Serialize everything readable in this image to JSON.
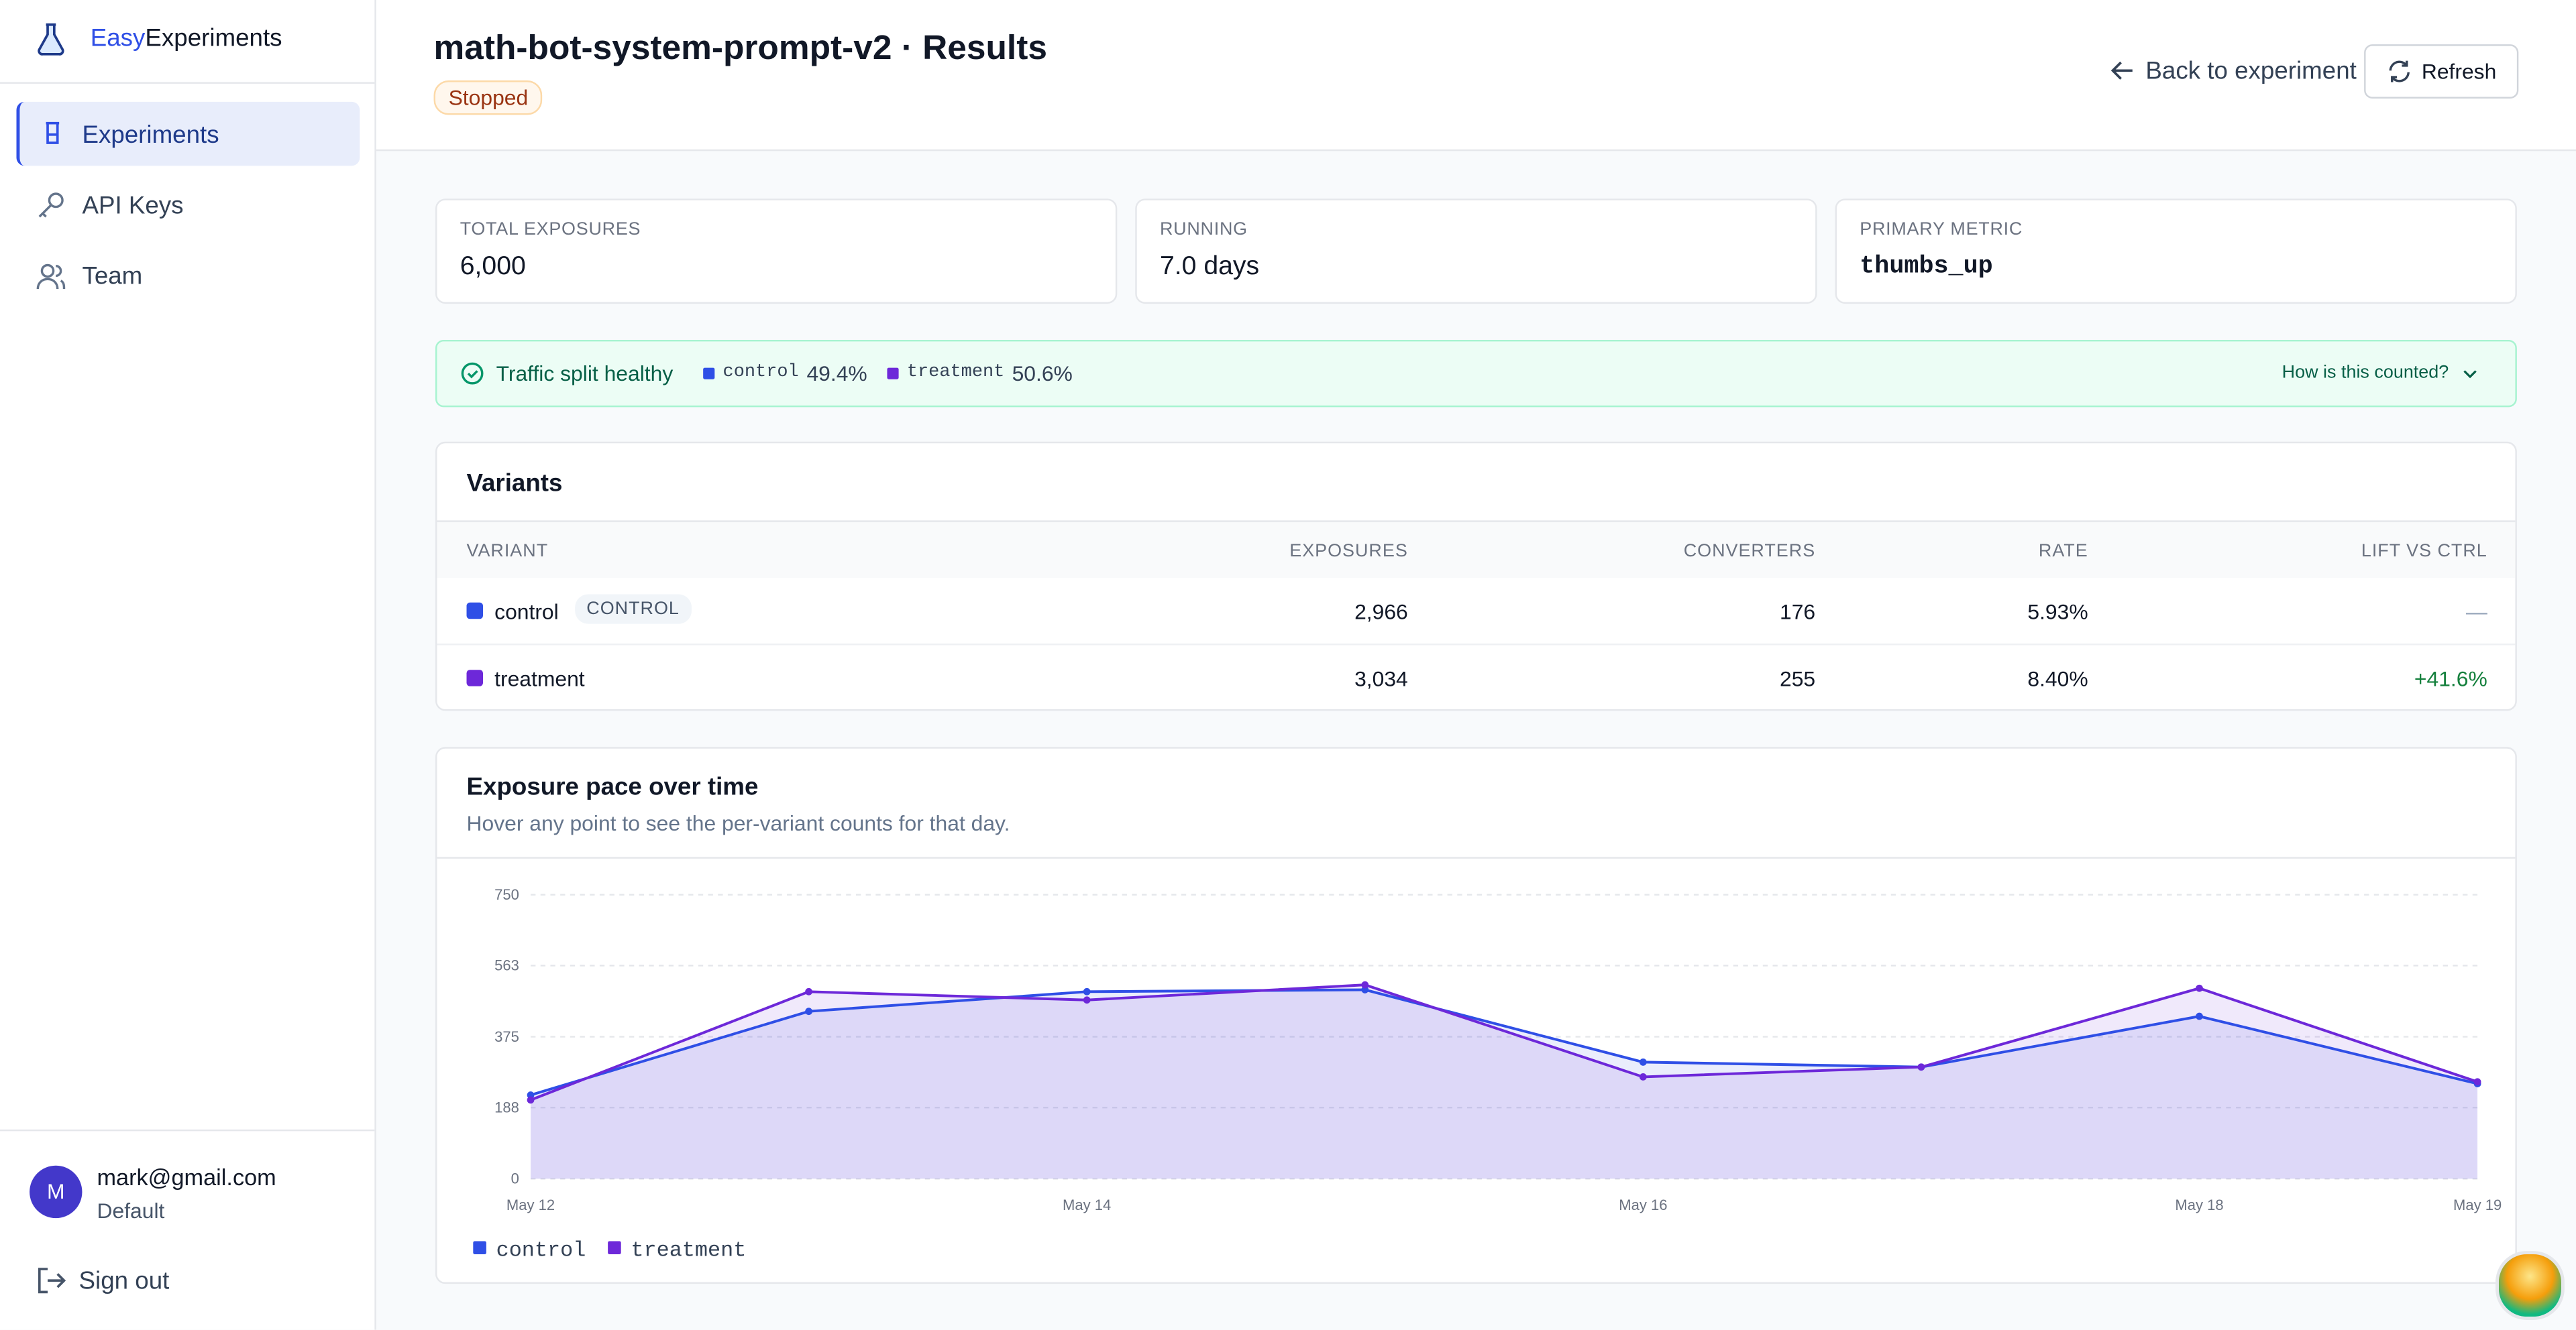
{
  "sidebar": {
    "brand": {
      "part1": "Easy",
      "part2": "Experiments"
    },
    "nav": [
      "Experiments",
      "API Keys",
      "Team"
    ],
    "user": {
      "avatar": "M",
      "email": "mark@gmail.com",
      "workspace": "Default"
    },
    "sign_out": "Sign out"
  },
  "header": {
    "title": "math-bot-system-prompt-v2 · Results",
    "status": "Stopped",
    "back": "Back to experiment",
    "refresh": "Refresh"
  },
  "stats": [
    {
      "label": "TOTAL EXPOSURES",
      "value": "6,000"
    },
    {
      "label": "RUNNING",
      "value": "7.0 days"
    },
    {
      "label": "PRIMARY METRIC",
      "value": "thumbs_up"
    }
  ],
  "traffic": {
    "status": "Traffic split healthy",
    "splits": [
      {
        "name": "control",
        "share": "49.4%"
      },
      {
        "name": "treatment",
        "share": "50.6%"
      }
    ],
    "help": "How is this counted?"
  },
  "variants": {
    "title": "Variants",
    "columns": [
      "VARIANT",
      "EXPOSURES",
      "CONVERTERS",
      "RATE",
      "LIFT VS CTRL"
    ],
    "rows": [
      [
        "control",
        "2,966",
        "176",
        "5.93%",
        "—"
      ],
      [
        "treatment",
        "3,034",
        "255",
        "8.40%",
        "+41.6%"
      ]
    ],
    "control_badge": "CONTROL"
  },
  "chart_card": {
    "title": "Exposure pace over time",
    "subtitle": "Hover any point to see the per-variant counts for that day."
  },
  "chart_data": {
    "type": "line",
    "categories": [
      "May 12",
      null,
      "May 14",
      null,
      "May 16",
      null,
      "May 18",
      "May 19"
    ],
    "series": [
      {
        "name": "control",
        "color": "#2f4fe6",
        "values": [
          221,
          442,
          494,
          499,
          308,
          295,
          429,
          251
        ]
      },
      {
        "name": "treatment",
        "color": "#6d28d9",
        "values": [
          208,
          494,
          472,
          512,
          269,
          295,
          503,
          256
        ]
      }
    ],
    "ylim": [
      0,
      750
    ],
    "yticks": [
      0,
      188,
      375,
      563,
      750
    ],
    "grid": true,
    "legend": "bottom-left",
    "area": true
  }
}
